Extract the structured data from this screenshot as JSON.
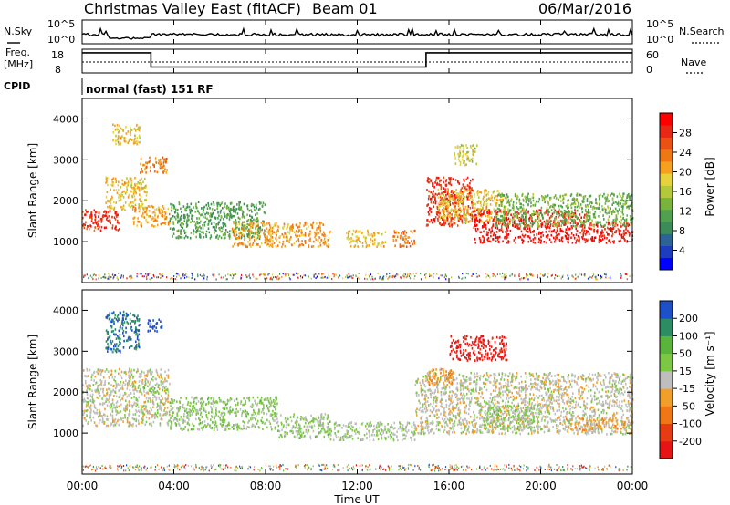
{
  "header": {
    "site": "Christmas Valley East (fitACF)",
    "beam": "Beam 01",
    "date": "06/Mar/2016"
  },
  "params": {
    "nsky_label": "N.Sky",
    "nsearch_label": "N.Search",
    "freq_label": "Freq.",
    "freq_unit": "[MHz]",
    "nave_label": "Nave",
    "cpid_label": "CPID",
    "cpid_value": "normal (fast) 151 RF",
    "noise_ticks": [
      "10^5",
      "10^0"
    ],
    "freq_ticks": [
      "18",
      "8"
    ],
    "nave_ticks": [
      "60",
      "0"
    ]
  },
  "axes": {
    "ylabel": "Slant Range [km]",
    "xlabel": "Time UT",
    "y_ticks": [
      "1000",
      "2000",
      "3000",
      "4000"
    ],
    "x_ticks": [
      "00:00",
      "04:00",
      "08:00",
      "12:00",
      "16:00",
      "20:00",
      "00:00"
    ]
  },
  "colorbars": {
    "power": {
      "label": "Power [dB]",
      "ticks": [
        "4",
        "8",
        "12",
        "16",
        "20",
        "24",
        "28"
      ],
      "colors": [
        "#0000ff",
        "#1e3cbe",
        "#2d6496",
        "#3c8c5a",
        "#50a050",
        "#78b43c",
        "#b4c83c",
        "#e6d23c",
        "#f5a01e",
        "#f07814",
        "#eb5014",
        "#e62814",
        "#ff0000"
      ]
    },
    "velocity": {
      "label": "Velocity [m s⁻¹]",
      "ticks": [
        "200",
        "100",
        "50",
        "15",
        "-15",
        "-50",
        "-100",
        "-200"
      ],
      "colors": [
        "#1e50c8",
        "#2d8c64",
        "#5ab43c",
        "#7cc844",
        "#bebebe",
        "#f0a028",
        "#f07814",
        "#e63c14",
        "#e61414"
      ]
    }
  },
  "chart_data": [
    {
      "type": "heatmap",
      "title": "Power",
      "xlabel": "Time UT",
      "ylabel": "Slant Range [km]",
      "xlim": [
        0,
        24
      ],
      "ylim": [
        0,
        4500
      ],
      "clim": [
        0,
        30
      ],
      "x_unit": "hours UT",
      "features": [
        {
          "t": [
            0.0,
            1.6
          ],
          "range": [
            1300,
            1800
          ],
          "value": 26
        },
        {
          "t": [
            1.0,
            2.8
          ],
          "range": [
            1800,
            2600
          ],
          "value": 18
        },
        {
          "t": [
            2.5,
            3.7
          ],
          "range": [
            2700,
            3100
          ],
          "value": 22
        },
        {
          "t": [
            2.2,
            3.8
          ],
          "range": [
            1400,
            1900
          ],
          "value": 20
        },
        {
          "t": [
            1.3,
            2.5
          ],
          "range": [
            3400,
            3900
          ],
          "value": 18
        },
        {
          "t": [
            3.8,
            8.0
          ],
          "range": [
            1100,
            2000
          ],
          "value": 10
        },
        {
          "t": [
            6.5,
            10.8
          ],
          "range": [
            900,
            1500
          ],
          "value": 20
        },
        {
          "t": [
            11.5,
            13.2
          ],
          "range": [
            900,
            1300
          ],
          "value": 18
        },
        {
          "t": [
            13.5,
            14.5
          ],
          "range": [
            900,
            1300
          ],
          "value": 22
        },
        {
          "t": [
            15.0,
            17.0
          ],
          "range": [
            1400,
            2600
          ],
          "value": 26
        },
        {
          "t": [
            15.5,
            18.5
          ],
          "range": [
            1500,
            2300
          ],
          "value": 18
        },
        {
          "t": [
            17.0,
            22.0
          ],
          "range": [
            1000,
            1800
          ],
          "value": 28
        },
        {
          "t": [
            22.0,
            24.0
          ],
          "range": [
            1000,
            1500
          ],
          "value": 28
        },
        {
          "t": [
            18.0,
            24.0
          ],
          "range": [
            1400,
            2200
          ],
          "value": 12
        },
        {
          "t": [
            16.2,
            17.2
          ],
          "range": [
            2900,
            3400
          ],
          "value": 16
        }
      ]
    },
    {
      "type": "heatmap",
      "title": "Velocity",
      "xlabel": "Time UT",
      "ylabel": "Slant Range [km]",
      "xlim": [
        0,
        24
      ],
      "ylim": [
        0,
        4500
      ],
      "clim": [
        -200,
        200
      ],
      "x_unit": "hours UT",
      "features": [
        {
          "t": [
            0.0,
            3.8
          ],
          "range": [
            1200,
            2600
          ],
          "value": 0
        },
        {
          "t": [
            1.0,
            2.5
          ],
          "range": [
            3000,
            4000
          ],
          "value": 150
        },
        {
          "t": [
            2.8,
            3.5
          ],
          "range": [
            3500,
            3800
          ],
          "value": 200
        },
        {
          "t": [
            2.2,
            3.3
          ],
          "range": [
            2000,
            2200
          ],
          "value": 40
        },
        {
          "t": [
            3.8,
            8.5
          ],
          "range": [
            1100,
            1900
          ],
          "value": 35
        },
        {
          "t": [
            8.5,
            10.8
          ],
          "range": [
            900,
            1500
          ],
          "value": 30
        },
        {
          "t": [
            10.8,
            14.5
          ],
          "range": [
            850,
            1300
          ],
          "value": 20
        },
        {
          "t": [
            14.5,
            24.0
          ],
          "range": [
            1000,
            2500
          ],
          "value": 0
        },
        {
          "t": [
            16.0,
            18.5
          ],
          "range": [
            2800,
            3400
          ],
          "value": -180
        },
        {
          "t": [
            15.0,
            16.2
          ],
          "range": [
            2200,
            2600
          ],
          "value": -60
        },
        {
          "t": [
            21.0,
            24.0
          ],
          "range": [
            1100,
            1400
          ],
          "value": -40
        },
        {
          "t": [
            17.5,
            20.0
          ],
          "range": [
            1100,
            1700
          ],
          "value": 30
        }
      ]
    },
    {
      "type": "line",
      "title": "Frequency",
      "ylabel": "Freq. [MHz]",
      "ylim": [
        8,
        18
      ],
      "x": [
        0,
        3.0,
        3.0,
        15.0,
        15.0,
        24
      ],
      "y": [
        16.5,
        16.5,
        10.5,
        10.5,
        16.5,
        16.5
      ]
    }
  ]
}
